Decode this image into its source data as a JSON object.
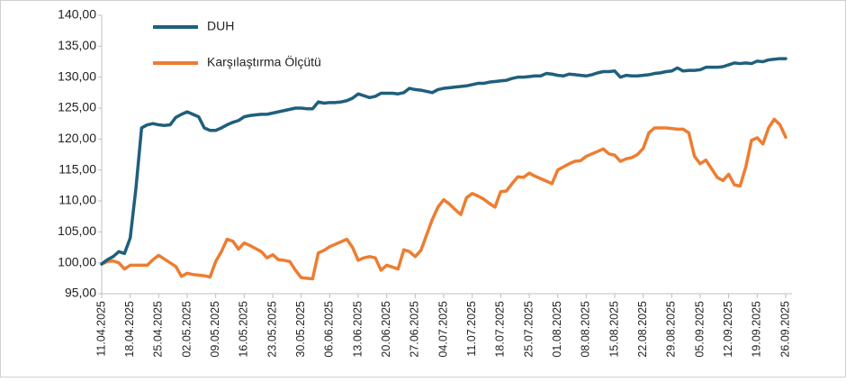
{
  "chart_data": {
    "type": "line",
    "categories": [
      "11.04.2025",
      null,
      null,
      null,
      null,
      "18.04.2025",
      null,
      null,
      null,
      null,
      "25.04.2025",
      null,
      null,
      null,
      null,
      "02.05.2025",
      null,
      null,
      null,
      null,
      "09.05.2025",
      null,
      null,
      null,
      null,
      "16.05.2025",
      null,
      null,
      null,
      null,
      "23.05.2025",
      null,
      null,
      null,
      null,
      "30.05.2025",
      null,
      null,
      null,
      null,
      "06.06.2025",
      null,
      null,
      null,
      null,
      "13.06.2025",
      null,
      null,
      null,
      null,
      "20.06.2025",
      null,
      null,
      null,
      null,
      "27.06.2025",
      null,
      null,
      null,
      null,
      "04.07.2025",
      null,
      null,
      null,
      null,
      "11.07.2025",
      null,
      null,
      null,
      null,
      "18.07.2025",
      null,
      null,
      null,
      null,
      "25.07.2025",
      null,
      null,
      null,
      null,
      "01.08.2025",
      null,
      null,
      null,
      null,
      "08.08.2025",
      null,
      null,
      null,
      null,
      "15.08.2025",
      null,
      null,
      null,
      null,
      "22.08.2025",
      null,
      null,
      null,
      null,
      "29.08.2025",
      null,
      null,
      null,
      null,
      "05.09.2025",
      null,
      null,
      null,
      null,
      "12.09.2025",
      null,
      null,
      null,
      null,
      "19.09.2025",
      null,
      null,
      null,
      null,
      "26.09.2025"
    ],
    "series": [
      {
        "name": "DUH",
        "color": "#1f5f7d",
        "values": [
          99.8,
          100.5,
          101,
          101.8,
          101.5,
          104,
          112,
          121.8,
          122.3,
          122.5,
          122.3,
          122.2,
          122.3,
          123.5,
          124,
          124.4,
          124,
          123.6,
          121.8,
          121.4,
          121.4,
          121.8,
          122.3,
          122.7,
          123,
          123.6,
          123.8,
          123.9,
          124,
          124,
          124.2,
          124.4,
          124.6,
          124.8,
          125,
          125,
          124.9,
          124.9,
          126,
          125.8,
          125.9,
          125.9,
          126,
          126.2,
          126.6,
          127.3,
          127,
          126.7,
          126.9,
          127.4,
          127.4,
          127.4,
          127.3,
          127.5,
          128.2,
          128,
          127.9,
          127.7,
          127.5,
          128,
          128.2,
          128.3,
          128.4,
          128.5,
          128.6,
          128.8,
          129,
          129,
          129.2,
          129.3,
          129.4,
          129.5,
          129.8,
          130,
          130,
          130.1,
          130.2,
          130.2,
          130.6,
          130.5,
          130.3,
          130.2,
          130.5,
          130.4,
          130.3,
          130.2,
          130.4,
          130.7,
          130.9,
          130.9,
          131,
          130,
          130.3,
          130.2,
          130.2,
          130.3,
          130.4,
          130.6,
          130.7,
          130.9,
          131,
          131.5,
          131,
          131.1,
          131.1,
          131.2,
          131.6,
          131.6,
          131.6,
          131.7,
          132,
          132.3,
          132.2,
          132.3,
          132.2,
          132.6,
          132.5,
          132.8,
          132.9,
          133,
          133
        ]
      },
      {
        "name": "Karşılaştırma Ölçütü",
        "color": "#ed7d31",
        "values": [
          99.8,
          100.2,
          100.3,
          100,
          99,
          99.6,
          99.6,
          99.6,
          99.6,
          100.5,
          101.2,
          100.6,
          100,
          99.4,
          97.8,
          98.3,
          98.1,
          98,
          97.9,
          97.7,
          100.2,
          101.8,
          103.8,
          103.5,
          102.2,
          103.2,
          102.8,
          102.3,
          101.8,
          100.8,
          101.3,
          100.5,
          100.4,
          100.2,
          98.8,
          97.6,
          97.5,
          97.4,
          101.6,
          102,
          102.6,
          103,
          103.4,
          103.8,
          102.5,
          100.4,
          100.8,
          101,
          100.8,
          98.8,
          99.6,
          99.3,
          99,
          102.1,
          101.8,
          101,
          102,
          104.5,
          107,
          109,
          110.2,
          109.5,
          108.6,
          107.8,
          110.5,
          111.2,
          110.8,
          110.3,
          109.6,
          109,
          111.5,
          111.6,
          112.8,
          113.9,
          113.8,
          114.5,
          114,
          113.6,
          113.2,
          112.8,
          115,
          115.5,
          116,
          116.4,
          116.5,
          117.2,
          117.6,
          118,
          118.4,
          117.6,
          117.4,
          116.4,
          116.8,
          117,
          117.5,
          118.5,
          121,
          121.8,
          121.8,
          121.8,
          121.7,
          121.6,
          121.6,
          121,
          117.2,
          116,
          116.6,
          115.2,
          113.8,
          113.3,
          114.3,
          112.6,
          112.4,
          115.5,
          119.8,
          120.2,
          119.2,
          121.8,
          123.2,
          122.3,
          120.3
        ]
      }
    ],
    "ylim": [
      95,
      140
    ],
    "yticks": [
      {
        "value": 95,
        "label": "95,00"
      },
      {
        "value": 100,
        "label": "100,00"
      },
      {
        "value": 105,
        "label": "105,00"
      },
      {
        "value": 110,
        "label": "110,00"
      },
      {
        "value": 115,
        "label": "115,00"
      },
      {
        "value": 120,
        "label": "120,00"
      },
      {
        "value": 125,
        "label": "125,00"
      },
      {
        "value": 130,
        "label": "130,00"
      },
      {
        "value": 135,
        "label": "135,00"
      },
      {
        "value": 140,
        "label": "140,00"
      }
    ],
    "grid": false,
    "legend": "top-left"
  }
}
